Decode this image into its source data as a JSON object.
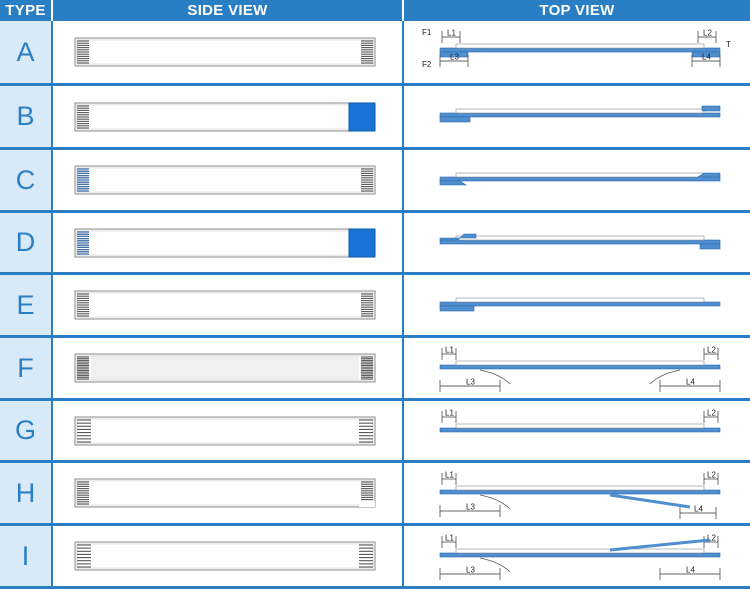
{
  "headers": {
    "type": "TYPE",
    "side": "SIDE VIEW",
    "top": "TOP VIEW"
  },
  "colors": {
    "accent": "#2a7fc4",
    "type_bg": "#d8e9f8",
    "stiffener": "#1a73d6",
    "cable": "#4f8fd0"
  },
  "rows": [
    {
      "type": "A",
      "side_variant": "plain",
      "top_variant": "A"
    },
    {
      "type": "B",
      "side_variant": "right-stiffener",
      "top_variant": "B"
    },
    {
      "type": "C",
      "side_variant": "both-ends",
      "top_variant": "C"
    },
    {
      "type": "D",
      "side_variant": "left-right-stiffener",
      "top_variant": "D"
    },
    {
      "type": "E",
      "side_variant": "plain",
      "top_variant": "E"
    },
    {
      "type": "F",
      "side_variant": "dense",
      "top_variant": "F"
    },
    {
      "type": "G",
      "side_variant": "plain-sparse",
      "top_variant": "G"
    },
    {
      "type": "H",
      "side_variant": "notched",
      "top_variant": "H"
    },
    {
      "type": "I",
      "side_variant": "plain-sparse",
      "top_variant": "I"
    }
  ],
  "dimension_labels": {
    "f1": "F1",
    "f2": "F2",
    "l1": "L1",
    "l2": "L2",
    "l3": "L3",
    "l4": "L4",
    "t": "T"
  }
}
